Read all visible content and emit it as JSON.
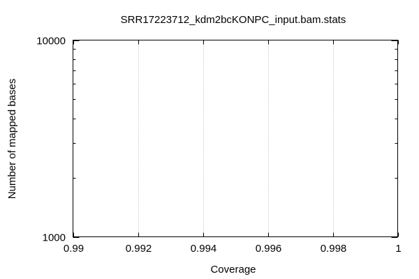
{
  "chart_data": {
    "type": "line",
    "title": "SRR17223712_kdm2bcKONPC_input.bam.stats",
    "xlabel": "Coverage",
    "ylabel": "Number of mapped bases",
    "xlim": [
      0.99,
      1
    ],
    "ylim": [
      1000,
      10000
    ],
    "y_scale": "log",
    "x_ticks": [
      {
        "value": 0.99,
        "label": "0.99"
      },
      {
        "value": 0.992,
        "label": "0.992"
      },
      {
        "value": 0.994,
        "label": "0.994"
      },
      {
        "value": 0.996,
        "label": "0.996"
      },
      {
        "value": 0.998,
        "label": "0.998"
      },
      {
        "value": 1,
        "label": "1"
      }
    ],
    "y_ticks": [
      {
        "value": 1000,
        "label": "1000"
      },
      {
        "value": 10000,
        "label": "10000"
      }
    ],
    "grid": {
      "x": true,
      "y": false,
      "style": "dotted"
    },
    "series": []
  }
}
